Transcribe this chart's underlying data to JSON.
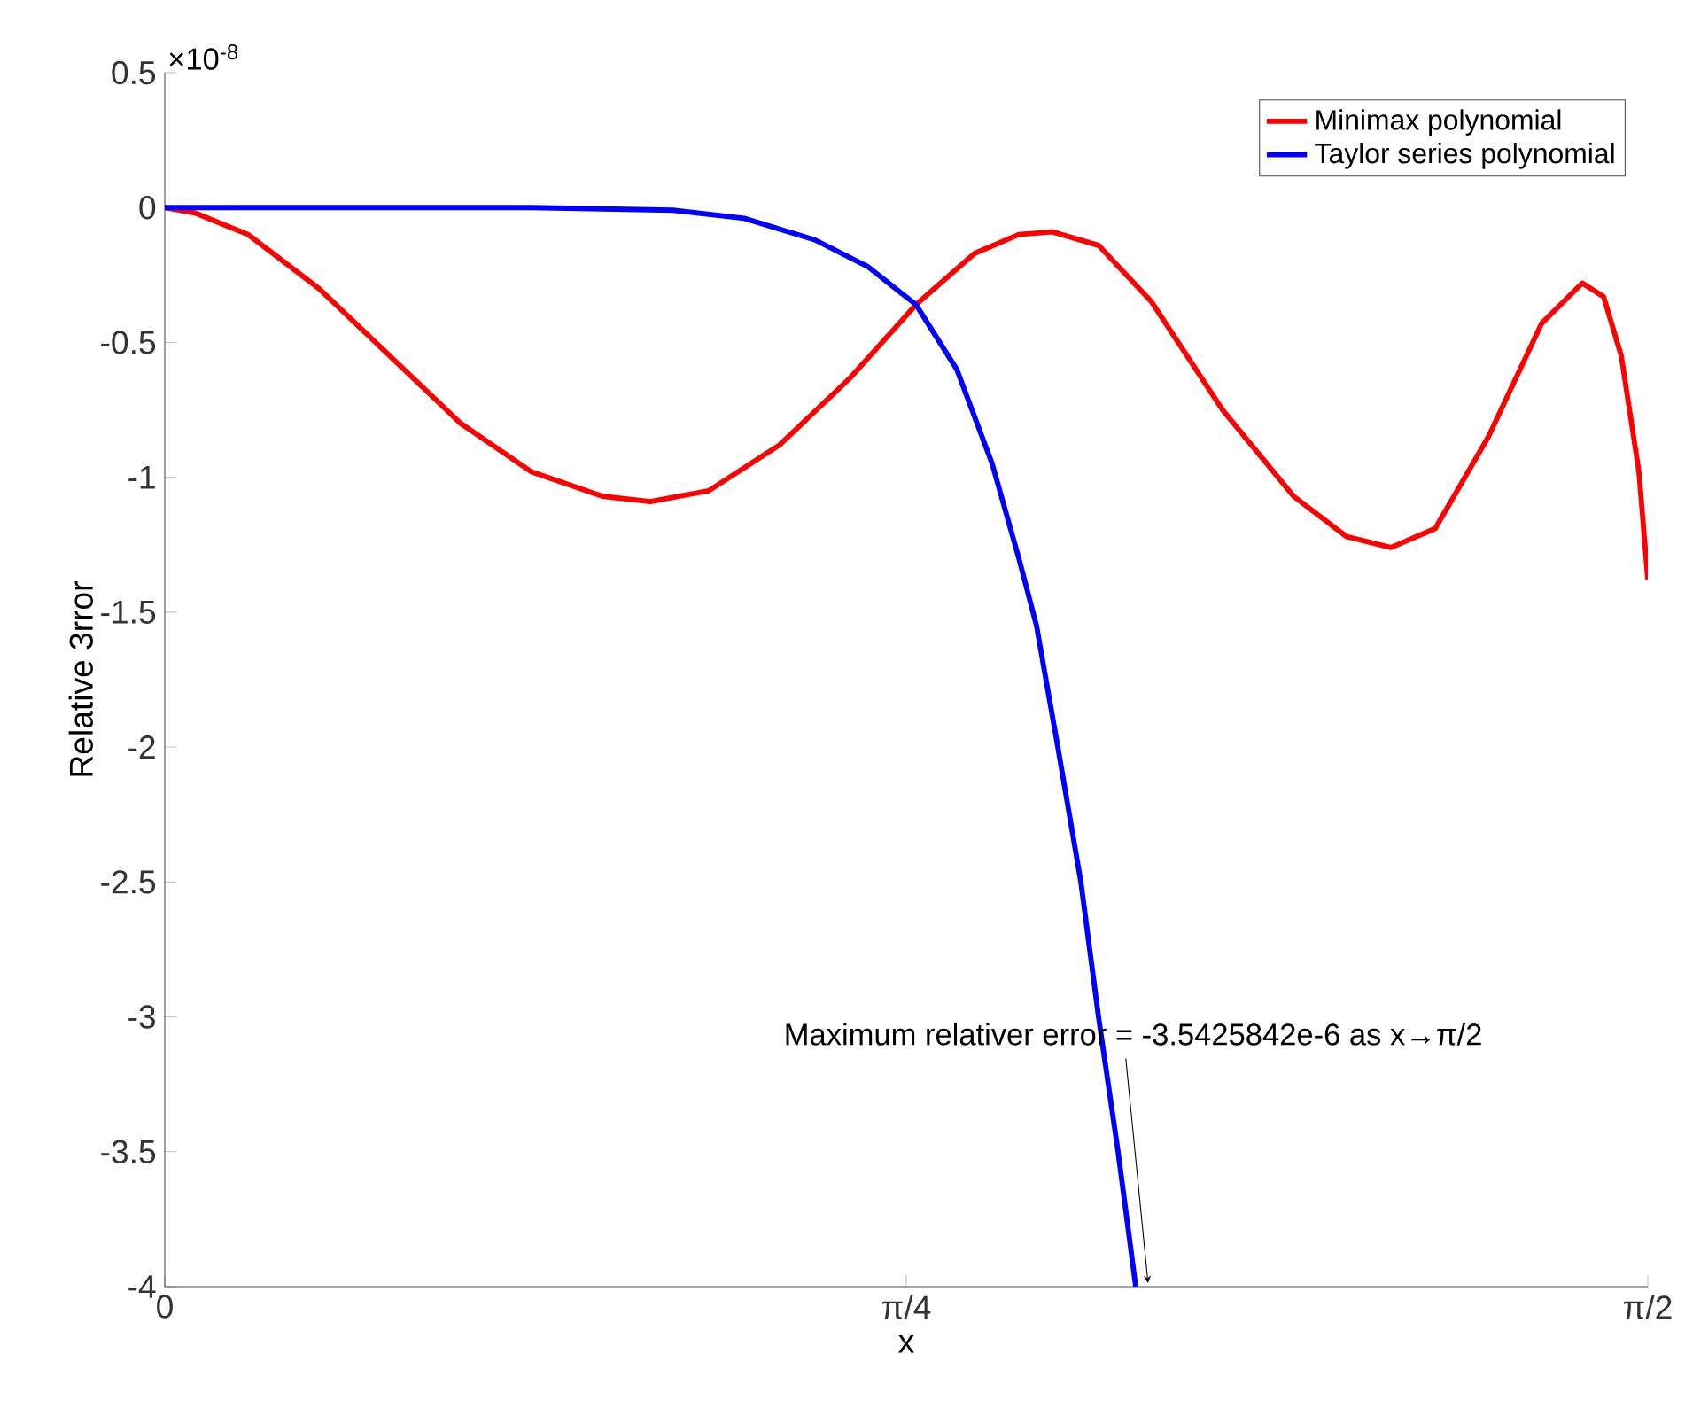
{
  "chart_data": {
    "type": "line",
    "xlabel": "x",
    "ylabel": "Relative 3rror",
    "xlim": [
      0,
      1.5708
    ],
    "ylim": [
      -4,
      0.5
    ],
    "xticks": [
      0,
      {
        "value": 0.7854,
        "label": "π/4"
      },
      {
        "value": 1.5708,
        "label": "π/2"
      }
    ],
    "yticks": [
      -4,
      -3.5,
      -3,
      -2.5,
      -2,
      -1.5,
      -1,
      -0.5,
      0,
      0.5
    ],
    "legend": "top right",
    "annotations": [
      "×10$^{-8}$",
      "Maximum relativer error = -3.5425842e-6 as x→π/2"
    ],
    "series": [
      {
        "name": "Minimax polynomial",
        "color": "#ff0000",
        "x": [
          0,
          0.0319,
          0.0882,
          0.1633,
          0.2383,
          0.3134,
          0.3885,
          0.4635,
          0.5142,
          0.5761,
          0.6512,
          0.7263,
          0.7957,
          0.8577,
          0.9046,
          0.9402,
          0.989,
          1.0453,
          1.1204,
          1.1955,
          1.2518,
          1.2987,
          1.3456,
          1.4019,
          1.4582,
          1.5014,
          1.5239,
          1.5427,
          1.5614,
          1.5708
        ],
        "values": [
          0,
          -0.02,
          -0.1,
          -0.3,
          -0.55,
          -0.8,
          -0.98,
          -1.07,
          -1.09,
          -1.05,
          -0.88,
          -0.63,
          -0.36,
          -0.17,
          -0.1,
          -0.09,
          -0.14,
          -0.35,
          -0.75,
          -1.07,
          -1.22,
          -1.26,
          -1.19,
          -0.85,
          -0.43,
          -0.28,
          -0.33,
          -0.55,
          -0.98,
          -1.38
        ]
      },
      {
        "name": "Taylor series polynomial",
        "color": "#0000ff",
        "x": [
          0,
          0.3885,
          0.5386,
          0.6137,
          0.6887,
          0.7451,
          0.7957,
          0.8389,
          0.8764,
          0.9046,
          0.9233,
          0.9459,
          0.9703,
          0.989,
          1.0097,
          1.0284
        ],
        "values": [
          0,
          0,
          -0.01,
          -0.04,
          -0.12,
          -0.22,
          -0.36,
          -0.6,
          -0.95,
          -1.3,
          -1.55,
          -2.0,
          -2.5,
          -3.0,
          -3.5,
          -4.0
        ]
      }
    ]
  }
}
